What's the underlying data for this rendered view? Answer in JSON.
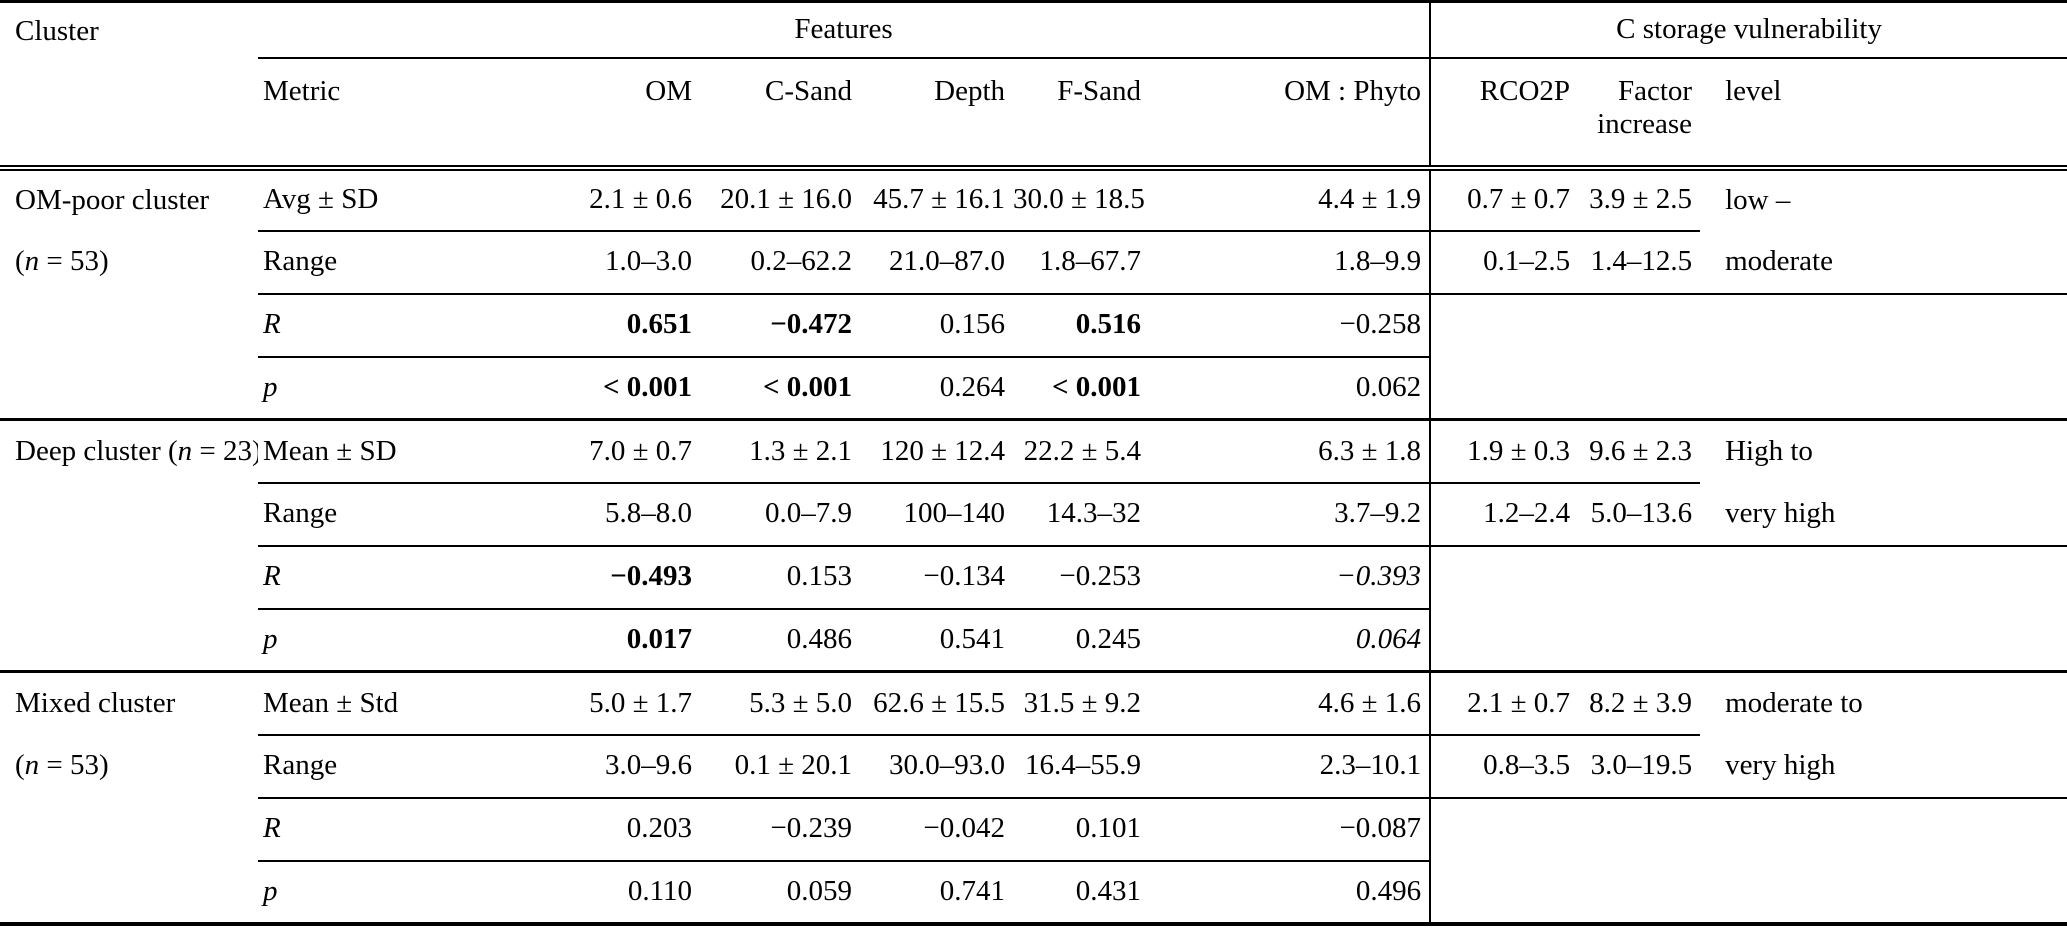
{
  "table": {
    "header": {
      "cluster": "Cluster",
      "features_group": "Features",
      "vulnerability_group": "C storage vulnerability",
      "columns": [
        "Metric",
        "OM",
        "C-Sand",
        "Depth",
        "F-Sand",
        "OM : Phyto",
        "RCO2P",
        "Factor\nincrease",
        "level"
      ]
    },
    "sections": [
      {
        "cluster_lines": [
          "OM-poor cluster",
          "(n = 53)"
        ],
        "rows": [
          {
            "metric": "Avg ± SD",
            "cells": [
              "2.1 ± 0.6",
              "20.1 ± 16.0",
              "45.7 ± 16.1",
              "30.0 ± 18.5",
              "4.4 ± 1.9",
              "0.7 ± 0.7",
              "3.9 ± 2.5",
              "low –"
            ]
          },
          {
            "metric": "Range",
            "cells": [
              "1.0–3.0",
              "0.2–62.2",
              "21.0–87.0",
              "1.8–67.7",
              "1.8–9.9",
              "0.1–2.5",
              "1.4–12.5",
              "moderate"
            ]
          },
          {
            "metric": {
              "v": "R",
              "italic": true
            },
            "cells": [
              {
                "v": "0.651",
                "bold": true
              },
              {
                "v": "−0.472",
                "bold": true
              },
              "0.156",
              {
                "v": "0.516",
                "bold": true
              },
              "−0.258",
              "",
              "",
              ""
            ]
          },
          {
            "metric": {
              "v": "p",
              "italic": true
            },
            "cells": [
              {
                "v": "< 0.001",
                "bold": true
              },
              {
                "v": "< 0.001",
                "bold": true
              },
              "0.264",
              {
                "v": "< 0.001",
                "bold": true
              },
              "0.062",
              "",
              "",
              ""
            ]
          }
        ]
      },
      {
        "cluster_lines": [
          "Deep cluster (n = 23)",
          ""
        ],
        "rows": [
          {
            "metric": "Mean ± SD",
            "cells": [
              "7.0 ± 0.7",
              "1.3 ± 2.1",
              "120 ± 12.4",
              "22.2 ± 5.4",
              "6.3 ± 1.8",
              "1.9 ± 0.3",
              "9.6 ± 2.3",
              "High to"
            ]
          },
          {
            "metric": "Range",
            "cells": [
              "5.8–8.0",
              "0.0–7.9",
              "100–140",
              "14.3–32",
              "3.7–9.2",
              "1.2–2.4",
              "5.0–13.6",
              "very high"
            ]
          },
          {
            "metric": {
              "v": "R",
              "italic": true
            },
            "cells": [
              {
                "v": "−0.493",
                "bold": true
              },
              "0.153",
              "−0.134",
              "−0.253",
              {
                "v": "−0.393",
                "italic": true
              },
              "",
              "",
              ""
            ]
          },
          {
            "metric": {
              "v": "p",
              "italic": true
            },
            "cells": [
              {
                "v": "0.017",
                "bold": true
              },
              "0.486",
              "0.541",
              "0.245",
              {
                "v": "0.064",
                "italic": true
              },
              "",
              "",
              ""
            ]
          }
        ]
      },
      {
        "cluster_lines": [
          "Mixed cluster",
          "(n = 53)"
        ],
        "rows": [
          {
            "metric": "Mean ± Std",
            "cells": [
              "5.0 ± 1.7",
              "5.3 ± 5.0",
              "62.6 ± 15.5",
              "31.5 ± 9.2",
              "4.6 ± 1.6",
              "2.1 ± 0.7",
              "8.2 ± 3.9",
              "moderate to"
            ]
          },
          {
            "metric": "Range",
            "cells": [
              "3.0–9.6",
              "0.1 ± 20.1",
              "30.0–93.0",
              "16.4–55.9",
              "2.3–10.1",
              "0.8–3.5",
              "3.0–19.5",
              "very high"
            ]
          },
          {
            "metric": {
              "v": "R",
              "italic": true
            },
            "cells": [
              "0.203",
              "−0.239",
              "−0.042",
              "0.101",
              "−0.087",
              "",
              "",
              ""
            ]
          },
          {
            "metric": {
              "v": "p",
              "italic": true
            },
            "cells": [
              "0.110",
              "0.059",
              "0.741",
              "0.431",
              "0.496",
              "",
              "",
              ""
            ]
          }
        ]
      }
    ]
  }
}
